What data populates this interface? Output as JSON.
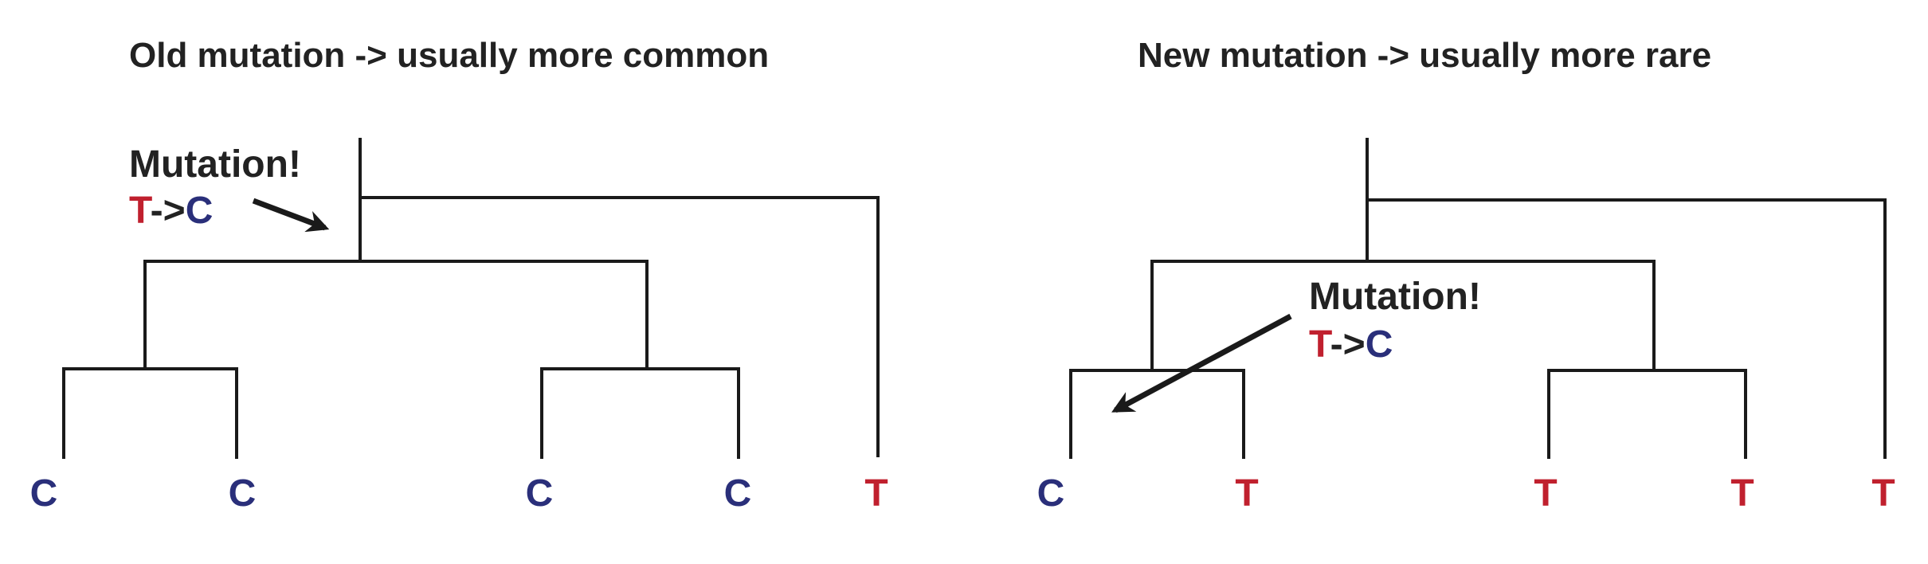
{
  "colors": {
    "T": "#c0202e",
    "C": "#2a2f7a",
    "text": "#222222",
    "line": "#1a1a1a"
  },
  "panels": [
    {
      "title": "Old mutation -> usually more common",
      "mutation": {
        "label": "Mutation!",
        "from": "T",
        "arrow": "->",
        "to": "C"
      },
      "tips": [
        "C",
        "C",
        "C",
        "C",
        "T"
      ]
    },
    {
      "title": "New mutation -> usually more rare",
      "mutation": {
        "label": "Mutation!",
        "from": "T",
        "arrow": "->",
        "to": "C"
      },
      "tips": [
        "C",
        "T",
        "T",
        "T",
        "T"
      ]
    }
  ]
}
